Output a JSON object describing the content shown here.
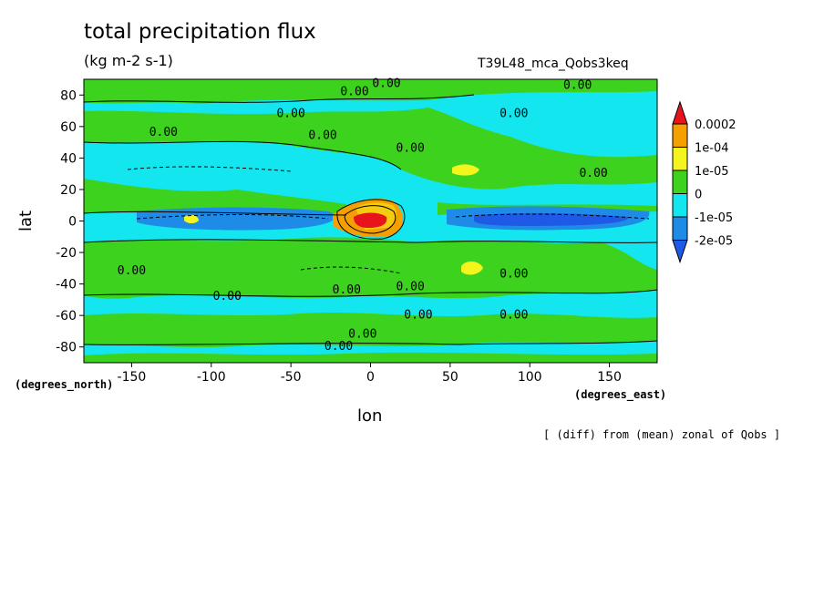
{
  "chart_data": {
    "type": "heatmap",
    "title": "total precipitation flux",
    "units": "(kg m-2 s-1)",
    "run_label": "T39L48_mca_Qobs3keq",
    "xlabel": "lon",
    "ylabel": "lat",
    "x_units": "(degrees_east)",
    "y_units": "(degrees_north)",
    "note": "[ (diff) from (mean) zonal of Qobs ]",
    "xlim": [
      -180,
      180
    ],
    "ylim": [
      -90,
      90
    ],
    "x_ticks": [
      -150,
      -100,
      -50,
      0,
      50,
      100,
      150
    ],
    "x_tick_labels": [
      "-150",
      "-100",
      "-50",
      "0",
      "50",
      "100",
      "150"
    ],
    "y_ticks": [
      80,
      60,
      40,
      20,
      0,
      -20,
      -40,
      -60,
      -80
    ],
    "y_tick_labels": [
      "80",
      "60",
      "40",
      "20",
      "0",
      "-20",
      "-40",
      "-60",
      "-80"
    ],
    "colorbar": {
      "labels": [
        "0.0002",
        "1e-04",
        "1e-05",
        "0",
        "-1e-05",
        "-2e-05"
      ],
      "colors": [
        "#e8141c",
        "#f5a000",
        "#f5f51e",
        "#3cd21e",
        "#14e6f0",
        "#1e8ce6",
        "#1e5ae6"
      ]
    },
    "contour_labels": [
      "0.00"
    ],
    "features": [
      {
        "name": "equatorial maximum",
        "lon": 0,
        "lat": 0,
        "level": "0.0002"
      },
      {
        "name": "northern yellow patch",
        "lon": 60,
        "lat": 33,
        "level": "1e-05"
      },
      {
        "name": "southern yellow patch",
        "lon": 62,
        "lat": -29,
        "level": "1e-05"
      },
      {
        "name": "eastern equatorial deficit",
        "lon": 100,
        "lat": 0,
        "level": "-2e-05"
      },
      {
        "name": "western equatorial deficit",
        "lon": -70,
        "lat": 0,
        "level": "-2e-05"
      }
    ]
  }
}
